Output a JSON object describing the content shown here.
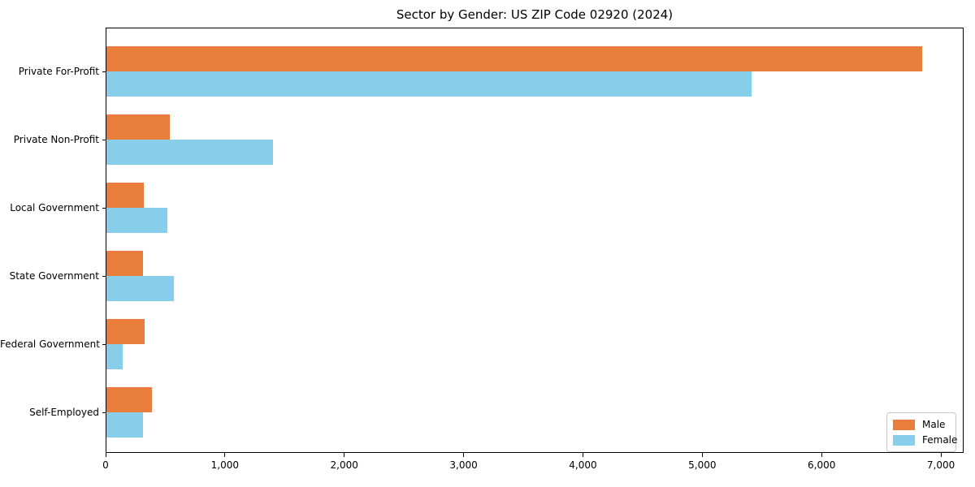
{
  "figure": {
    "background": "#ffffff",
    "axis_color": "#000000"
  },
  "chart_data": {
    "type": "bar",
    "orientation": "horizontal",
    "title": "Sector by Gender: US ZIP Code 02920 (2024)",
    "categories": [
      "Private For-Profit",
      "Private Non-Profit",
      "Local Government",
      "State Government",
      "Federal Government",
      "Self-Employed"
    ],
    "series": [
      {
        "name": "Male",
        "color": "#E87D3C",
        "values": [
          6845,
          540,
          320,
          315,
          330,
          390
        ]
      },
      {
        "name": "Female",
        "color": "#87CEEB",
        "values": [
          5410,
          1400,
          520,
          570,
          140,
          310
        ]
      }
    ],
    "xlim": [
      0,
      7190
    ],
    "xticks": [
      0,
      1000,
      2000,
      3000,
      4000,
      5000,
      6000,
      7000
    ],
    "xtick_labels": [
      "0",
      "1,000",
      "2,000",
      "3,000",
      "4,000",
      "5,000",
      "6,000",
      "7,000"
    ],
    "ylabel": "",
    "xlabel": "",
    "grid": false,
    "legend": {
      "position": "lower-right",
      "labels": [
        "Male",
        "Female"
      ]
    }
  }
}
